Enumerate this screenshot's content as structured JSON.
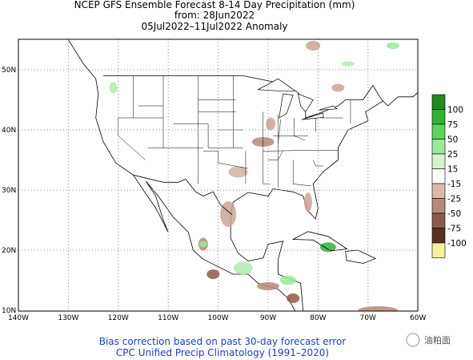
{
  "header": {
    "title_lines": [
      "NCEP GFS Ensemble Forecast 8-14 Day Precipitation (mm)",
      "from: 28Jun2022",
      "05Jul2022–11Jul2022 Anomaly"
    ]
  },
  "map": {
    "lon_labels": [
      "140W",
      "130W",
      "120W",
      "110W",
      "100W",
      "90W",
      "80W",
      "70W",
      "60W"
    ],
    "lat_labels": [
      "50N",
      "40N",
      "30N",
      "20N",
      "10N"
    ]
  },
  "colorbar": {
    "labels": [
      "100",
      "75",
      "50",
      "25",
      "15",
      "-15",
      "-25",
      "-50",
      "-75",
      "-100"
    ]
  },
  "footer": {
    "lines": [
      "Bias correction based on past 30-day forecast error",
      "CPC Unified Precip Climatology (1991–2020)"
    ],
    "watermark": "油粕面"
  }
}
